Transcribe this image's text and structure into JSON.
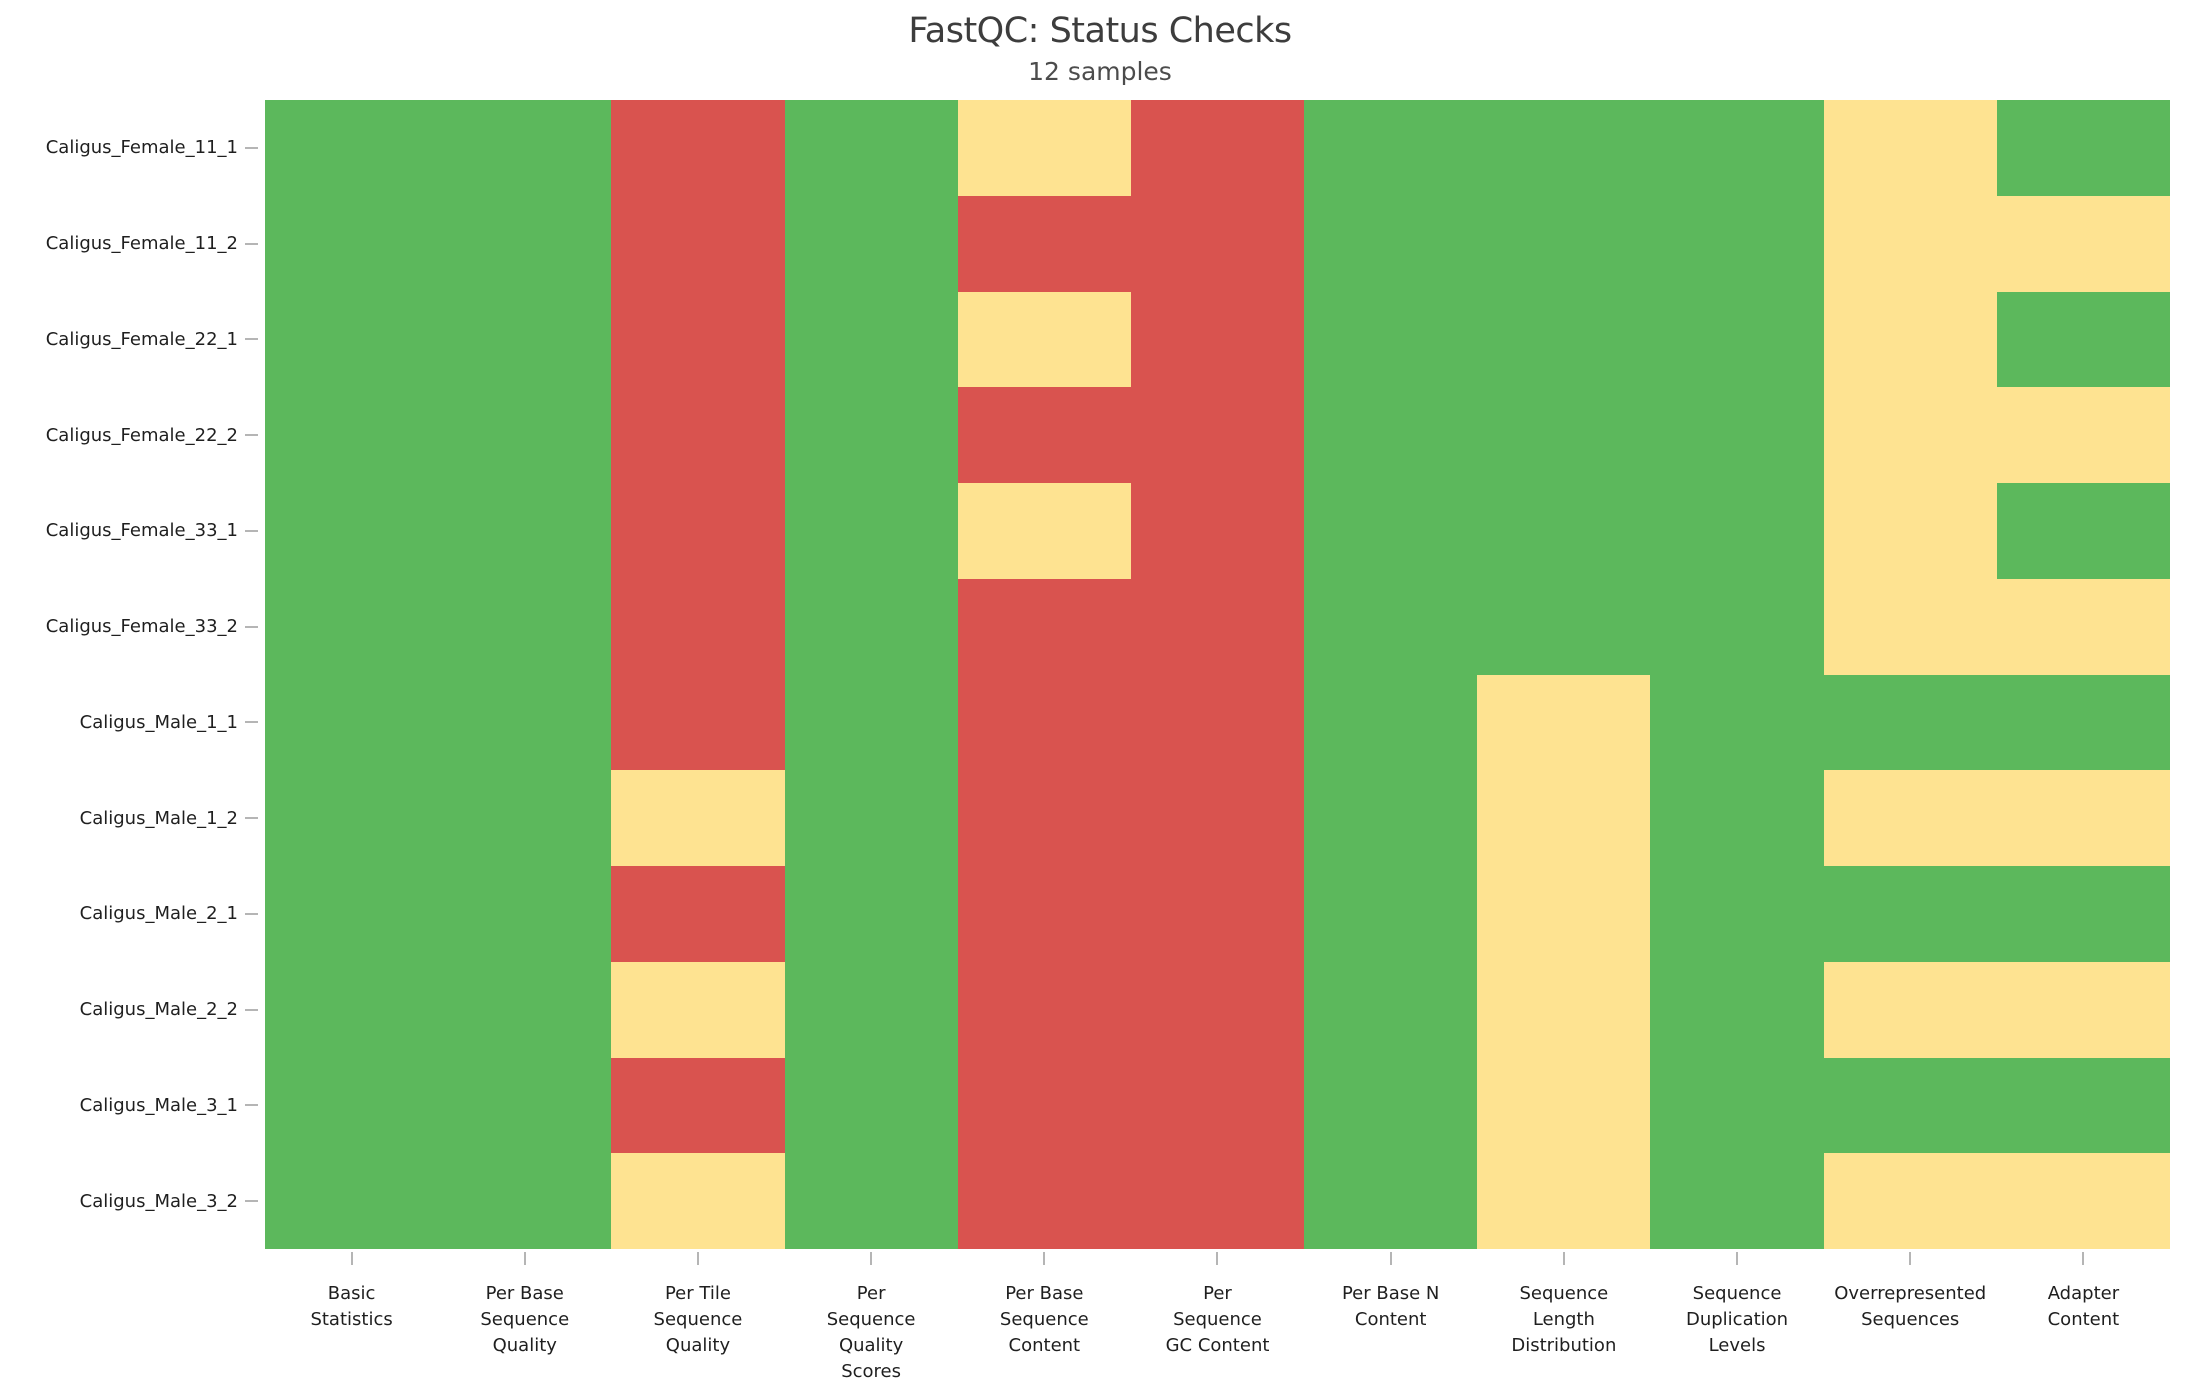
{
  "page": {
    "background": "#ffffff"
  },
  "status_colors": {
    "pass": "#5cb85c",
    "warn": "#fee391",
    "fail": "#d9534f"
  },
  "chart_data": {
    "type": "heatmap",
    "title": "FastQC: Status Checks",
    "subtitle": "12 samples",
    "grid": false,
    "legend_position": "none",
    "x_axis": {
      "categories": [
        "Basic Statistics",
        "Per Base Sequence Quality",
        "Per Tile Sequence Quality",
        "Per Sequence Quality Scores",
        "Per Base Sequence Content",
        "Per Sequence GC Content",
        "Per Base N Content",
        "Sequence Length Distribution",
        "Sequence Duplication Levels",
        "Overrepresented Sequences",
        "Adapter Content"
      ],
      "label_lines": [
        [
          "Basic",
          "Statistics"
        ],
        [
          "Per Base",
          "Sequence",
          "Quality"
        ],
        [
          "Per Tile",
          "Sequence",
          "Quality"
        ],
        [
          "Per",
          "Sequence",
          "Quality",
          "Scores"
        ],
        [
          "Per Base",
          "Sequence",
          "Content"
        ],
        [
          "Per",
          "Sequence",
          "GC Content"
        ],
        [
          "Per Base N",
          "Content"
        ],
        [
          "Sequence",
          "Length",
          "Distribution"
        ],
        [
          "Sequence",
          "Duplication",
          "Levels"
        ],
        [
          "Overrepresented",
          "Sequences"
        ],
        [
          "Adapter",
          "Content"
        ]
      ]
    },
    "y_axis": {
      "categories": [
        "Caligus_Female_11_1",
        "Caligus_Female_11_2",
        "Caligus_Female_22_1",
        "Caligus_Female_22_2",
        "Caligus_Female_33_1",
        "Caligus_Female_33_2",
        "Caligus_Male_1_1",
        "Caligus_Male_1_2",
        "Caligus_Male_2_1",
        "Caligus_Male_2_2",
        "Caligus_Male_3_1",
        "Caligus_Male_3_2"
      ]
    },
    "statuses": [
      [
        "pass",
        "pass",
        "fail",
        "pass",
        "warn",
        "fail",
        "pass",
        "pass",
        "pass",
        "warn",
        "pass"
      ],
      [
        "pass",
        "pass",
        "fail",
        "pass",
        "fail",
        "fail",
        "pass",
        "pass",
        "pass",
        "warn",
        "warn"
      ],
      [
        "pass",
        "pass",
        "fail",
        "pass",
        "warn",
        "fail",
        "pass",
        "pass",
        "pass",
        "warn",
        "pass"
      ],
      [
        "pass",
        "pass",
        "fail",
        "pass",
        "fail",
        "fail",
        "pass",
        "pass",
        "pass",
        "warn",
        "warn"
      ],
      [
        "pass",
        "pass",
        "fail",
        "pass",
        "warn",
        "fail",
        "pass",
        "pass",
        "pass",
        "warn",
        "pass"
      ],
      [
        "pass",
        "pass",
        "fail",
        "pass",
        "fail",
        "fail",
        "pass",
        "pass",
        "pass",
        "warn",
        "warn"
      ],
      [
        "pass",
        "pass",
        "fail",
        "pass",
        "fail",
        "fail",
        "pass",
        "warn",
        "pass",
        "pass",
        "pass"
      ],
      [
        "pass",
        "pass",
        "warn",
        "pass",
        "fail",
        "fail",
        "pass",
        "warn",
        "pass",
        "warn",
        "warn"
      ],
      [
        "pass",
        "pass",
        "fail",
        "pass",
        "fail",
        "fail",
        "pass",
        "warn",
        "pass",
        "pass",
        "pass"
      ],
      [
        "pass",
        "pass",
        "warn",
        "pass",
        "fail",
        "fail",
        "pass",
        "warn",
        "pass",
        "warn",
        "warn"
      ],
      [
        "pass",
        "pass",
        "fail",
        "pass",
        "fail",
        "fail",
        "pass",
        "warn",
        "pass",
        "pass",
        "pass"
      ],
      [
        "pass",
        "pass",
        "warn",
        "pass",
        "fail",
        "fail",
        "pass",
        "warn",
        "pass",
        "warn",
        "warn"
      ]
    ]
  }
}
